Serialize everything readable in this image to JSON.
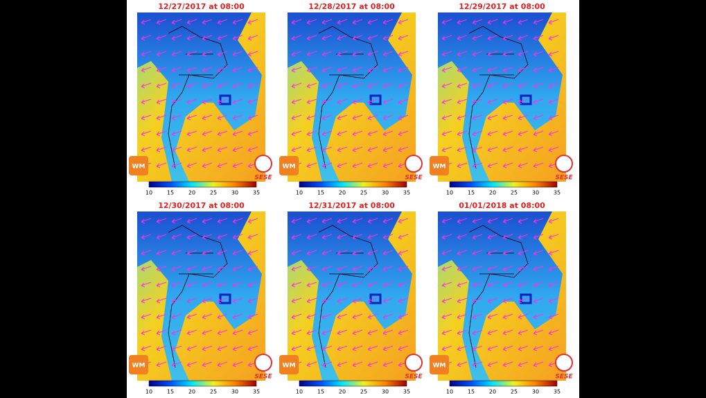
{
  "panels": [
    {
      "title": "12/27/2017 at 08:00"
    },
    {
      "title": "12/28/2017 at 08:00"
    },
    {
      "title": "12/29/2017 at 08:00"
    },
    {
      "title": "12/30/2017 at 08:00"
    },
    {
      "title": "12/31/2017 at 08:00"
    },
    {
      "title": "01/01/2018 at 08:00"
    }
  ],
  "colorbar": {
    "ticks": [
      10,
      15,
      20,
      25,
      30,
      35
    ]
  },
  "logos": {
    "left": "WM",
    "right": "SESE"
  }
}
